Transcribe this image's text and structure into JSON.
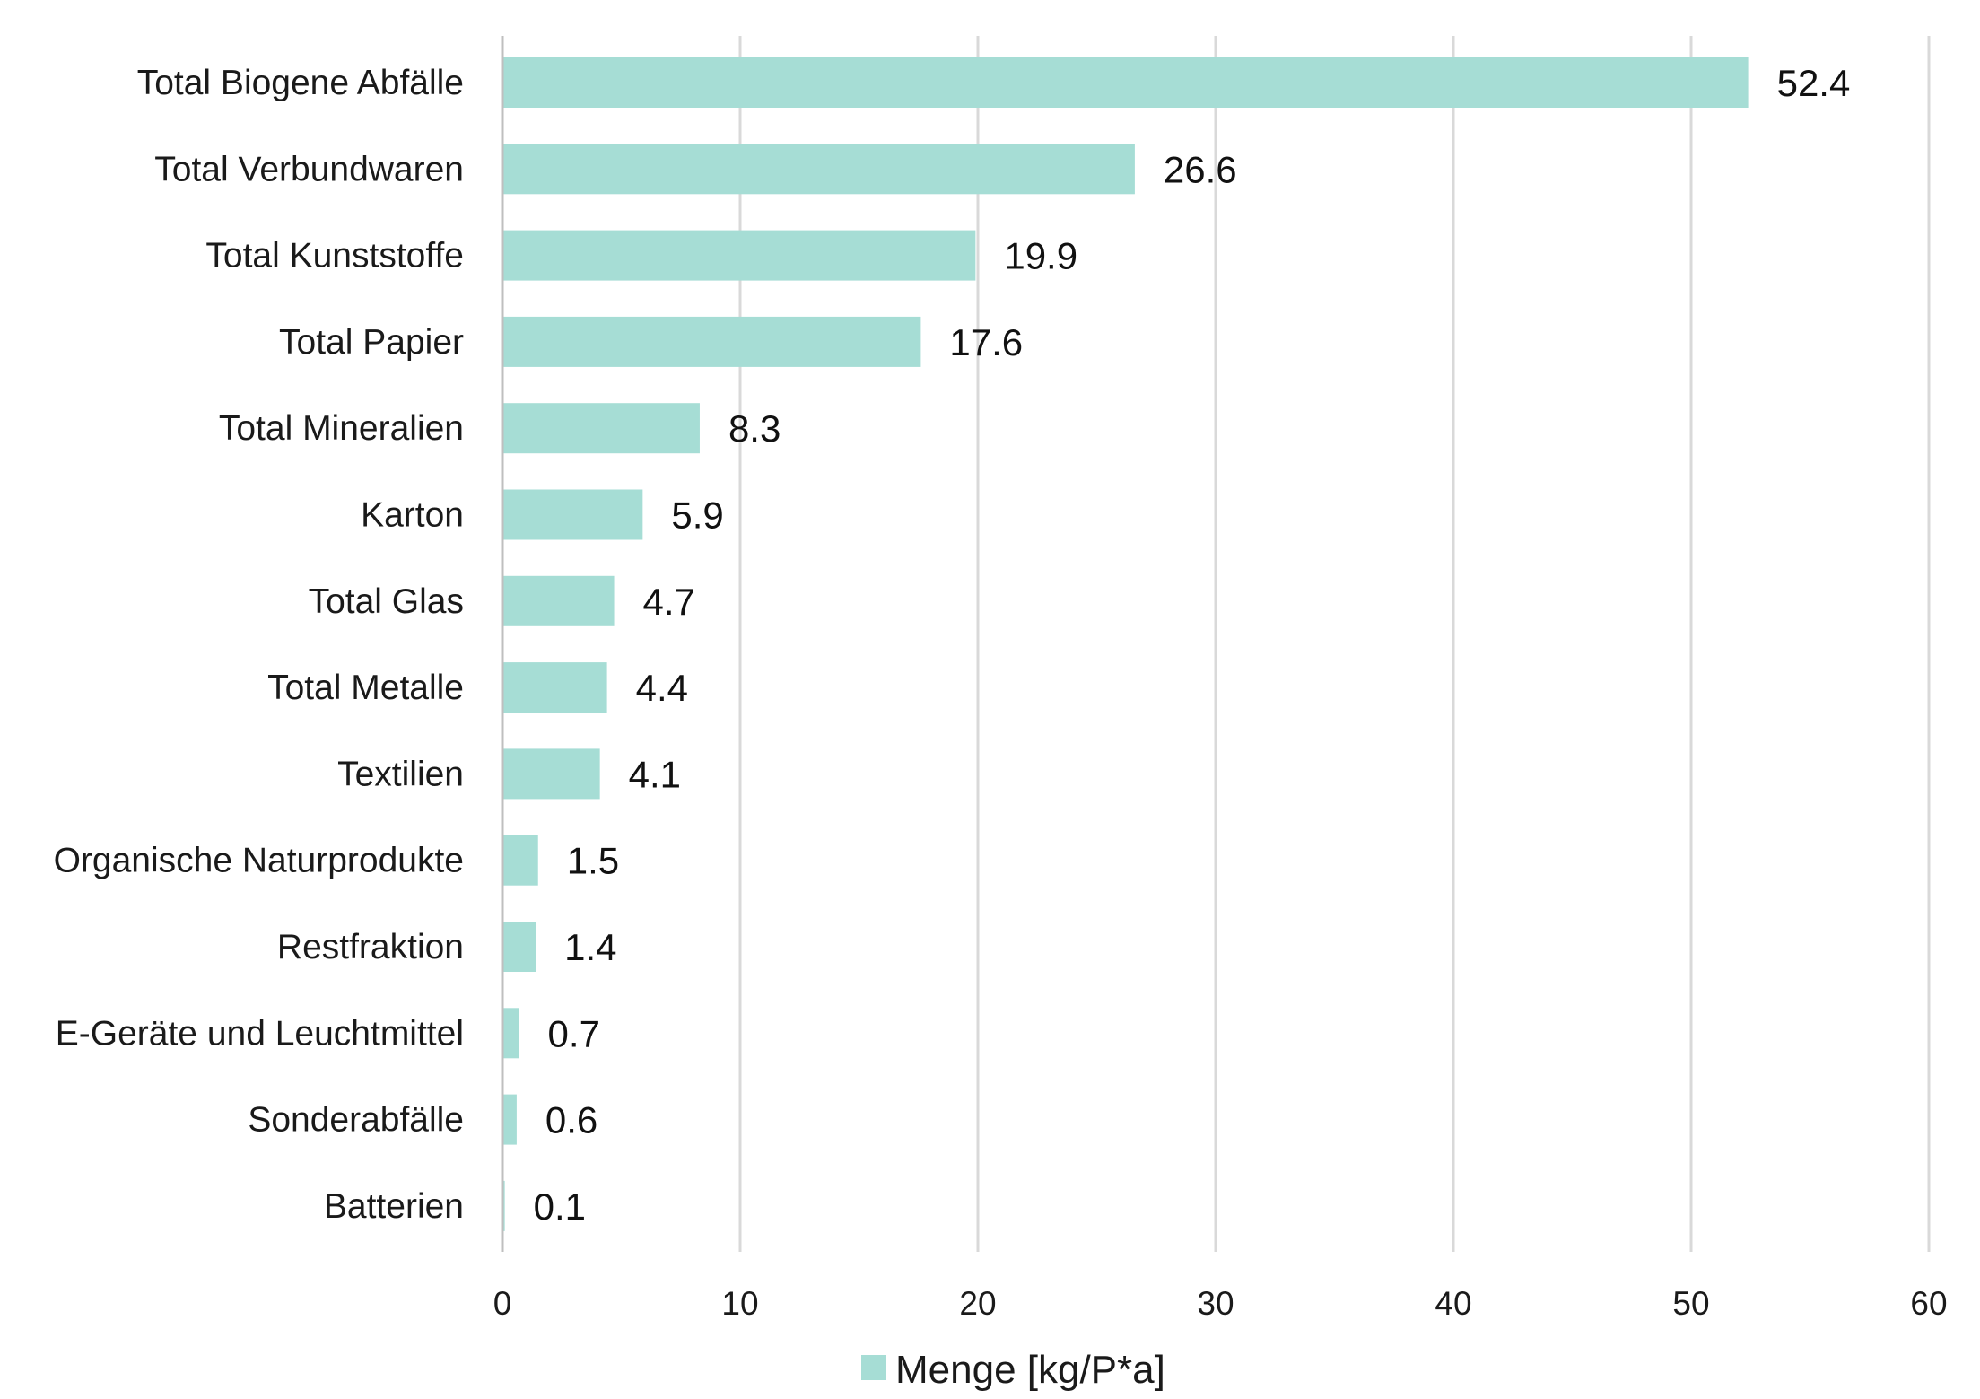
{
  "chart_data": {
    "type": "bar",
    "orientation": "horizontal",
    "categories": [
      "Total Biogene Abfälle",
      "Total Verbundwaren",
      "Total Kunststoffe",
      "Total Papier",
      "Total Mineralien",
      "Karton",
      "Total Glas",
      "Total Metalle",
      "Textilien",
      "Organische Naturprodukte",
      "Restfraktion",
      "E-Geräte und Leuchtmittel",
      "Sonderabfälle",
      "Batterien"
    ],
    "series": [
      {
        "name": "Menge [kg/P*a]",
        "values": [
          52.4,
          26.6,
          19.9,
          17.6,
          8.3,
          5.9,
          4.7,
          4.4,
          4.1,
          1.5,
          1.4,
          0.7,
          0.6,
          0.1
        ],
        "value_labels": [
          "52.4",
          "26.6",
          "19.9",
          "17.6",
          "8.3",
          "5.9",
          "4.7",
          "4.4",
          "4.1",
          "1.5",
          "1.4",
          "0.7",
          "0.6",
          "0.1"
        ]
      }
    ],
    "xlim": [
      0,
      60
    ],
    "xticks": [
      0,
      10,
      20,
      30,
      40,
      50,
      60
    ],
    "xtick_labels": [
      "0",
      "10",
      "20",
      "30",
      "40",
      "50",
      "60"
    ],
    "grid": "vertical",
    "legend": "bottom",
    "colors": {
      "bar": "#a6ddd5",
      "grid": "#d9d9d9",
      "axis": "#bfbfbf",
      "text": "#1a1a1a"
    }
  }
}
